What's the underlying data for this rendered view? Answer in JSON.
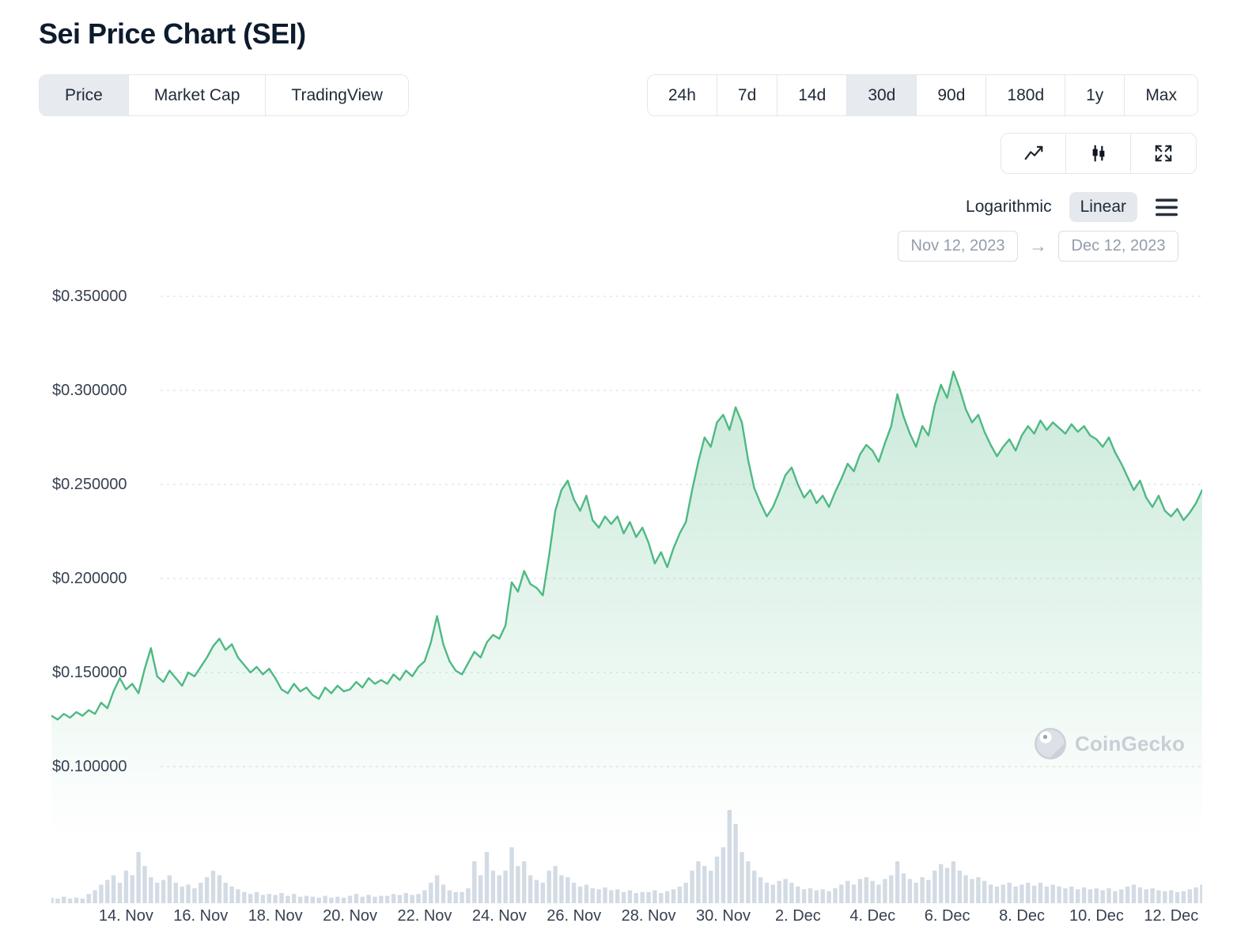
{
  "header": {
    "title": "Sei Price Chart (SEI)"
  },
  "tabs": {
    "items": [
      {
        "label": "Price",
        "active": true
      },
      {
        "label": "Market Cap",
        "active": false
      },
      {
        "label": "TradingView",
        "active": false
      }
    ]
  },
  "ranges": {
    "items": [
      {
        "label": "24h",
        "active": false
      },
      {
        "label": "7d",
        "active": false
      },
      {
        "label": "14d",
        "active": false
      },
      {
        "label": "30d",
        "active": true
      },
      {
        "label": "90d",
        "active": false
      },
      {
        "label": "180d",
        "active": false
      },
      {
        "label": "1y",
        "active": false
      },
      {
        "label": "Max",
        "active": false
      }
    ]
  },
  "chart_controls": {
    "icons": [
      "line-chart",
      "candlestick",
      "fullscreen"
    ],
    "scale": {
      "options": [
        "Logarithmic",
        "Linear"
      ],
      "selected": "Linear"
    }
  },
  "date_range": {
    "start": "Nov 12, 2023",
    "end": "Dec 12, 2023",
    "arrow": "→"
  },
  "watermark": {
    "label": "CoinGecko"
  },
  "chart_data": {
    "type": "line",
    "title": "Sei Price Chart (SEI)",
    "currency": "USD",
    "line_color": "#4eb983",
    "volume_color": "#bcc8d6",
    "grid_color": "#e3e7ed",
    "grid": true,
    "start_date": "Nov 12, 2023",
    "end_date": "Dec 12, 2023",
    "days_total": 30.83,
    "ylim": [
      0.1,
      0.35
    ],
    "y_ticks": [
      {
        "label": "$0.350000",
        "value": 0.35
      },
      {
        "label": "$0.300000",
        "value": 0.3
      },
      {
        "label": "$0.250000",
        "value": 0.25
      },
      {
        "label": "$0.200000",
        "value": 0.2
      },
      {
        "label": "$0.150000",
        "value": 0.15
      },
      {
        "label": "$0.100000",
        "value": 0.1
      }
    ],
    "x_labels": [
      {
        "label": "14. Nov",
        "day": 2
      },
      {
        "label": "16. Nov",
        "day": 4
      },
      {
        "label": "18. Nov",
        "day": 6
      },
      {
        "label": "20. Nov",
        "day": 8
      },
      {
        "label": "22. Nov",
        "day": 10
      },
      {
        "label": "24. Nov",
        "day": 12
      },
      {
        "label": "26. Nov",
        "day": 14
      },
      {
        "label": "28. Nov",
        "day": 16
      },
      {
        "label": "30. Nov",
        "day": 18
      },
      {
        "label": "2. Dec",
        "day": 20
      },
      {
        "label": "4. Dec",
        "day": 22
      },
      {
        "label": "6. Dec",
        "day": 24
      },
      {
        "label": "8. Dec",
        "day": 26
      },
      {
        "label": "10. Dec",
        "day": 28
      },
      {
        "label": "12. Dec",
        "day": 30
      }
    ],
    "prices": [
      0.127,
      0.125,
      0.128,
      0.126,
      0.129,
      0.127,
      0.13,
      0.128,
      0.134,
      0.131,
      0.14,
      0.147,
      0.141,
      0.144,
      0.139,
      0.152,
      0.163,
      0.148,
      0.145,
      0.151,
      0.147,
      0.143,
      0.15,
      0.148,
      0.153,
      0.158,
      0.164,
      0.168,
      0.162,
      0.165,
      0.158,
      0.154,
      0.15,
      0.153,
      0.149,
      0.152,
      0.147,
      0.141,
      0.139,
      0.144,
      0.14,
      0.142,
      0.138,
      0.136,
      0.142,
      0.139,
      0.143,
      0.14,
      0.141,
      0.145,
      0.142,
      0.147,
      0.144,
      0.146,
      0.144,
      0.149,
      0.146,
      0.151,
      0.148,
      0.153,
      0.156,
      0.166,
      0.18,
      0.165,
      0.156,
      0.151,
      0.149,
      0.155,
      0.161,
      0.158,
      0.166,
      0.17,
      0.168,
      0.175,
      0.198,
      0.193,
      0.204,
      0.197,
      0.195,
      0.191,
      0.212,
      0.236,
      0.247,
      0.252,
      0.242,
      0.236,
      0.244,
      0.231,
      0.227,
      0.233,
      0.229,
      0.233,
      0.224,
      0.23,
      0.222,
      0.227,
      0.219,
      0.208,
      0.214,
      0.206,
      0.216,
      0.224,
      0.23,
      0.247,
      0.262,
      0.275,
      0.27,
      0.283,
      0.287,
      0.279,
      0.291,
      0.283,
      0.263,
      0.248,
      0.24,
      0.233,
      0.238,
      0.246,
      0.255,
      0.259,
      0.25,
      0.243,
      0.247,
      0.24,
      0.244,
      0.238,
      0.246,
      0.253,
      0.261,
      0.257,
      0.266,
      0.271,
      0.268,
      0.262,
      0.272,
      0.281,
      0.298,
      0.286,
      0.277,
      0.27,
      0.281,
      0.276,
      0.292,
      0.303,
      0.296,
      0.31,
      0.301,
      0.29,
      0.283,
      0.287,
      0.278,
      0.271,
      0.265,
      0.27,
      0.274,
      0.268,
      0.276,
      0.281,
      0.277,
      0.284,
      0.279,
      0.283,
      0.28,
      0.277,
      0.282,
      0.278,
      0.281,
      0.276,
      0.274,
      0.27,
      0.275,
      0.267,
      0.261,
      0.254,
      0.247,
      0.252,
      0.243,
      0.238,
      0.244,
      0.236,
      0.233,
      0.237,
      0.231,
      0.235,
      0.24,
      0.247
    ],
    "volumes": [
      0.06,
      0.05,
      0.07,
      0.05,
      0.06,
      0.05,
      0.1,
      0.14,
      0.2,
      0.25,
      0.3,
      0.22,
      0.35,
      0.3,
      0.55,
      0.4,
      0.28,
      0.22,
      0.25,
      0.3,
      0.22,
      0.18,
      0.2,
      0.16,
      0.22,
      0.28,
      0.35,
      0.3,
      0.22,
      0.18,
      0.15,
      0.12,
      0.1,
      0.12,
      0.09,
      0.1,
      0.09,
      0.11,
      0.08,
      0.1,
      0.07,
      0.08,
      0.07,
      0.06,
      0.08,
      0.06,
      0.07,
      0.06,
      0.08,
      0.1,
      0.07,
      0.09,
      0.07,
      0.08,
      0.08,
      0.1,
      0.09,
      0.11,
      0.09,
      0.1,
      0.14,
      0.22,
      0.3,
      0.2,
      0.14,
      0.12,
      0.12,
      0.16,
      0.45,
      0.3,
      0.55,
      0.35,
      0.3,
      0.35,
      0.6,
      0.4,
      0.45,
      0.3,
      0.25,
      0.22,
      0.35,
      0.4,
      0.3,
      0.28,
      0.22,
      0.18,
      0.2,
      0.16,
      0.15,
      0.17,
      0.14,
      0.15,
      0.12,
      0.14,
      0.11,
      0.12,
      0.12,
      0.14,
      0.11,
      0.13,
      0.15,
      0.18,
      0.22,
      0.35,
      0.45,
      0.4,
      0.35,
      0.5,
      0.6,
      1.0,
      0.85,
      0.55,
      0.45,
      0.35,
      0.28,
      0.22,
      0.2,
      0.24,
      0.26,
      0.22,
      0.18,
      0.15,
      0.16,
      0.14,
      0.15,
      0.13,
      0.16,
      0.2,
      0.24,
      0.2,
      0.26,
      0.28,
      0.24,
      0.2,
      0.26,
      0.3,
      0.45,
      0.32,
      0.26,
      0.22,
      0.28,
      0.25,
      0.35,
      0.42,
      0.38,
      0.45,
      0.35,
      0.3,
      0.26,
      0.28,
      0.24,
      0.2,
      0.18,
      0.2,
      0.22,
      0.18,
      0.2,
      0.22,
      0.19,
      0.22,
      0.18,
      0.2,
      0.18,
      0.16,
      0.18,
      0.15,
      0.17,
      0.15,
      0.16,
      0.14,
      0.16,
      0.13,
      0.15,
      0.18,
      0.2,
      0.17,
      0.15,
      0.16,
      0.14,
      0.13,
      0.14,
      0.12,
      0.13,
      0.15,
      0.17,
      0.2
    ]
  }
}
